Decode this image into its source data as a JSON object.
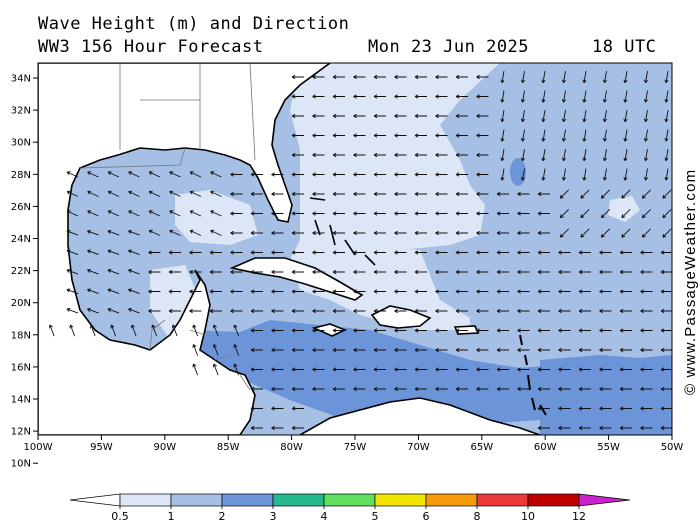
{
  "header": {
    "title": "Wave Height (m) and Direction",
    "model": "WW3 156 Hour Forecast",
    "date": "Mon 23 Jun 2025",
    "time": "18 UTC"
  },
  "axes": {
    "lat_labels": [
      "34N",
      "32N",
      "30N",
      "28N",
      "26N",
      "24N",
      "22N",
      "20N",
      "18N",
      "16N",
      "14N",
      "12N",
      "10N"
    ],
    "lon_labels": [
      "100W",
      "95W",
      "90W",
      "85W",
      "80W",
      "75W",
      "70W",
      "65W",
      "60W",
      "55W",
      "50W"
    ]
  },
  "credit": "© www.PassageWeather.com",
  "legend": {
    "labels": [
      "0.5",
      "1",
      "2",
      "3",
      "4",
      "5",
      "6",
      "8",
      "10",
      "12"
    ],
    "colors": [
      "#ffffff",
      "#dde6f6",
      "#a6bfe4",
      "#6b95d8",
      "#26b88f",
      "#5ee05e",
      "#f2e600",
      "#f59a0a",
      "#ec3a3a",
      "#c00000",
      "#cc22cc"
    ]
  },
  "map": {
    "ocean_colors": {
      "calm": "#dde6f6",
      "moderate": "#a6bfe4",
      "high": "#6b95d8",
      "land": "#ffffff"
    }
  }
}
